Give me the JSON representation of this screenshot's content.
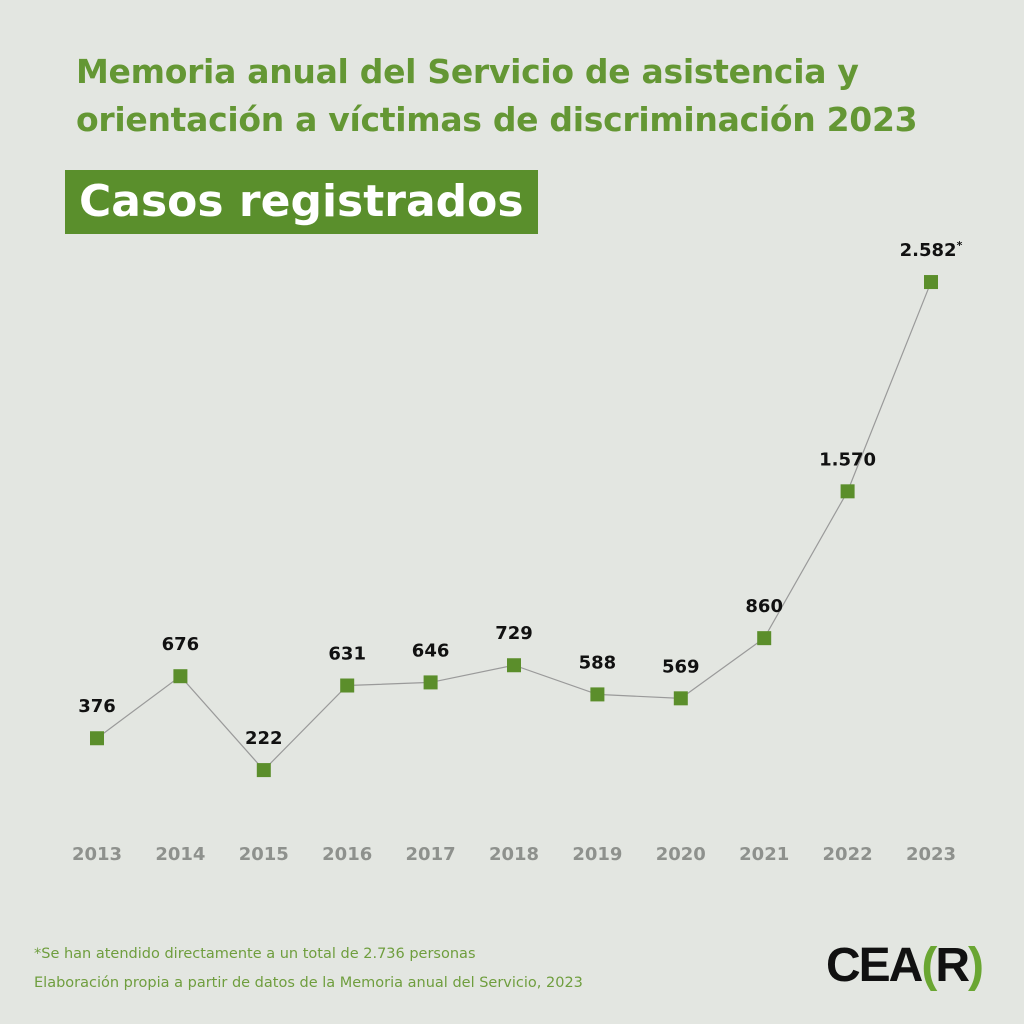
{
  "header": {
    "title_line1": "Memoria anual del Servicio de asistencia y",
    "title_line2": "orientación a víctimas de discriminación 2023",
    "subtitle": "Casos registrados"
  },
  "chart_data": {
    "type": "line",
    "title": "Casos registrados",
    "categories": [
      "2013",
      "2014",
      "2015",
      "2016",
      "2017",
      "2018",
      "2019",
      "2020",
      "2021",
      "2022",
      "2023"
    ],
    "values": [
      376,
      676,
      222,
      631,
      646,
      729,
      588,
      569,
      860,
      1570,
      2582
    ],
    "labels": [
      "376",
      "676",
      "222",
      "631",
      "646",
      "729",
      "588",
      "569",
      "860",
      "1.570",
      "2.582"
    ],
    "annotations": {
      "10": "*"
    },
    "xlabel": "",
    "ylabel": "",
    "grid": false,
    "colors": {
      "marker": "#5b8e2b",
      "line": "#9a9a9a",
      "axis_label": "#8e918d",
      "data_label": "#111111"
    }
  },
  "footer": {
    "note": "*Se han atendido directamente a un total de 2.736 personas",
    "source": "Elaboración propia a partir de datos de la Memoria anual del Servicio, 2023"
  },
  "logo": {
    "text_a": "CEA",
    "bracket_open": "(",
    "text_b": "R",
    "bracket_close": ")"
  }
}
